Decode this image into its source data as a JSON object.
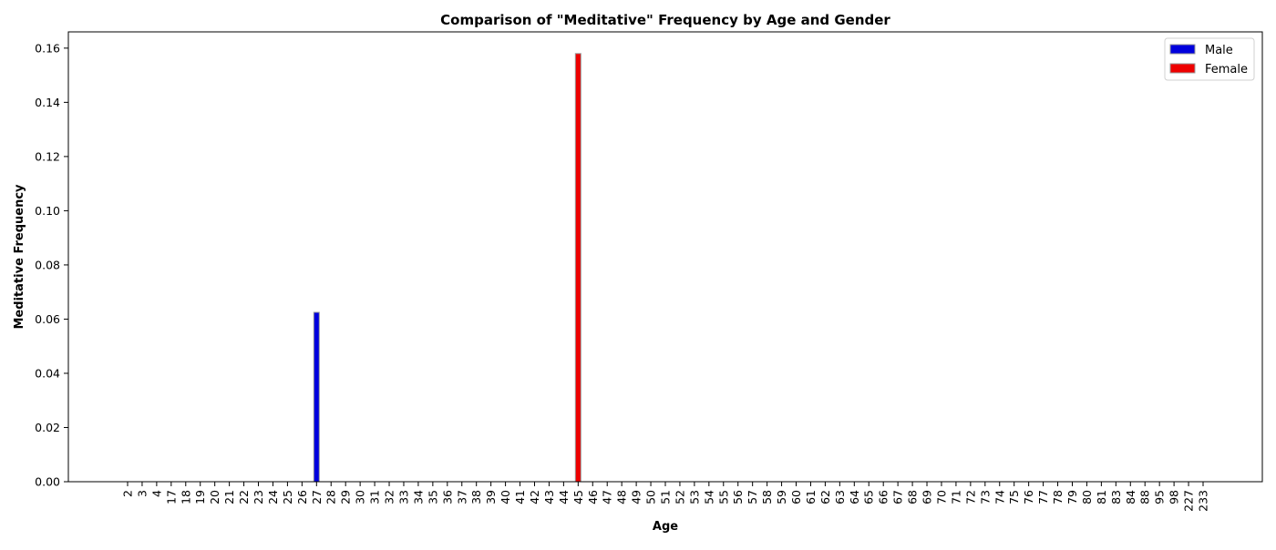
{
  "chart_data": {
    "type": "bar",
    "title": "Comparison of \"Meditative\" Frequency by Age and Gender",
    "xlabel": "Age",
    "ylabel": "Meditative Frequency",
    "ylim": [
      0,
      0.166
    ],
    "yticks": [
      "0.00",
      "0.02",
      "0.04",
      "0.06",
      "0.08",
      "0.10",
      "0.12",
      "0.14",
      "0.16"
    ],
    "ytick_values": [
      0,
      0.02,
      0.04,
      0.06,
      0.08,
      0.1,
      0.12,
      0.14,
      0.16
    ],
    "categories": [
      "2",
      "3",
      "4",
      "17",
      "18",
      "19",
      "20",
      "21",
      "22",
      "23",
      "24",
      "25",
      "26",
      "27",
      "28",
      "29",
      "30",
      "31",
      "32",
      "33",
      "34",
      "35",
      "36",
      "37",
      "38",
      "39",
      "40",
      "41",
      "42",
      "43",
      "44",
      "45",
      "46",
      "47",
      "48",
      "49",
      "50",
      "51",
      "52",
      "53",
      "54",
      "55",
      "56",
      "57",
      "58",
      "59",
      "60",
      "61",
      "62",
      "63",
      "64",
      "65",
      "66",
      "67",
      "68",
      "69",
      "70",
      "71",
      "72",
      "73",
      "74",
      "75",
      "76",
      "77",
      "78",
      "79",
      "80",
      "81",
      "83",
      "84",
      "88",
      "95",
      "98",
      "227",
      "233"
    ],
    "series": [
      {
        "name": "Male",
        "color": "#0000dd",
        "bars": [
          {
            "category": "27",
            "value": 0.0625
          }
        ]
      },
      {
        "name": "Female",
        "color": "#ee0000",
        "bars": [
          {
            "category": "45",
            "value": 0.158
          }
        ]
      }
    ],
    "legend_position": "top-right",
    "grid": false
  }
}
